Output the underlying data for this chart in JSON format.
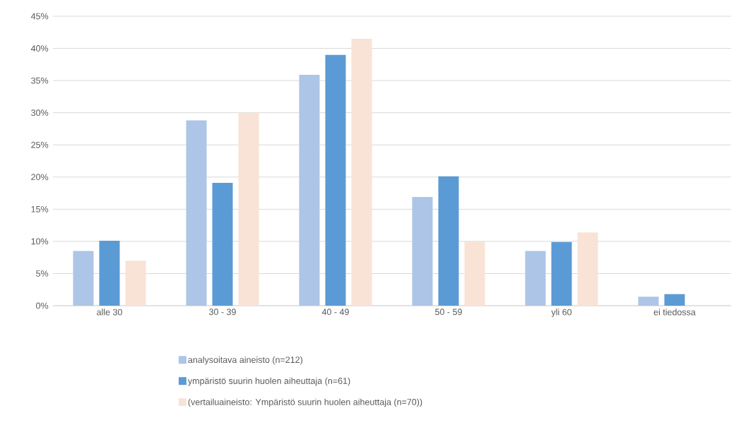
{
  "chart_data": {
    "type": "bar",
    "categories": [
      "alle 30",
      "30 - 39",
      "40 - 49",
      "50 - 59",
      "yli 60",
      "ei tiedossa"
    ],
    "series": [
      {
        "name": "analysoitava aineisto (n=212)",
        "color": "#adc5e6",
        "values": [
          8.5,
          28.8,
          35.9,
          16.9,
          8.5,
          1.4
        ]
      },
      {
        "name": "ympäristö suurin huolen aiheuttaja (n=61)",
        "color": "#5b9bd5",
        "values": [
          10.1,
          19.1,
          39.0,
          20.1,
          9.9,
          1.8
        ]
      },
      {
        "name": "(vertailuaineisto: Ympäristö suurin huolen aiheuttaja (n=70))",
        "color": "#f9e3d6",
        "values": [
          7.0,
          30.0,
          41.5,
          10.0,
          11.4,
          null
        ]
      }
    ],
    "ylim": [
      0,
      45
    ],
    "yticks": [
      {
        "value": 0,
        "label": "0%"
      },
      {
        "value": 5,
        "label": "5%"
      },
      {
        "value": 10,
        "label": "10%"
      },
      {
        "value": 15,
        "label": "15%"
      },
      {
        "value": 20,
        "label": "20%"
      },
      {
        "value": 25,
        "label": "25%"
      },
      {
        "value": 30,
        "label": "30%"
      },
      {
        "value": 35,
        "label": "35%"
      },
      {
        "value": 40,
        "label": "40%"
      },
      {
        "value": 45,
        "label": "45%"
      }
    ],
    "grid": "y",
    "legend": "bottom"
  }
}
